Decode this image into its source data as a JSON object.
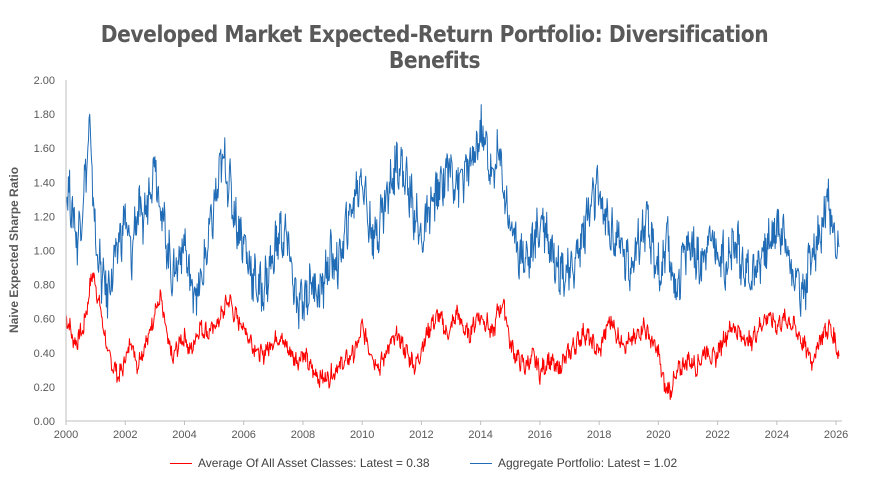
{
  "chart_data": {
    "type": "line",
    "title": "Developed Market Expected-Return Portfolio: Diversification Benefits",
    "xlabel": "",
    "ylabel": "Naive Expected Sharpe Ratio",
    "xlim": [
      2000,
      2026.2
    ],
    "ylim": [
      0,
      2
    ],
    "x_ticks": [
      "2000",
      "2002",
      "2004",
      "2006",
      "2008",
      "2010",
      "2012",
      "2014",
      "2016",
      "2018",
      "2020",
      "2022",
      "2024",
      "2026"
    ],
    "y_ticks": [
      "0.00",
      "0.20",
      "0.40",
      "0.60",
      "0.80",
      "1.00",
      "1.20",
      "1.40",
      "1.60",
      "1.80",
      "2.00"
    ],
    "grid": false,
    "legend_position": "bottom",
    "series": [
      {
        "name": "Average Of All Asset Classes: Latest = 0.38",
        "color": "#ff0000",
        "points": [
          [
            2000.0,
            0.62
          ],
          [
            2000.3,
            0.45
          ],
          [
            2000.6,
            0.55
          ],
          [
            2000.9,
            0.88
          ],
          [
            2001.2,
            0.62
          ],
          [
            2001.4,
            0.4
          ],
          [
            2001.6,
            0.32
          ],
          [
            2001.8,
            0.26
          ],
          [
            2002.0,
            0.36
          ],
          [
            2002.2,
            0.48
          ],
          [
            2002.4,
            0.33
          ],
          [
            2002.6,
            0.42
          ],
          [
            2002.8,
            0.5
          ],
          [
            2003.0,
            0.65
          ],
          [
            2003.2,
            0.72
          ],
          [
            2003.4,
            0.5
          ],
          [
            2003.6,
            0.36
          ],
          [
            2003.8,
            0.45
          ],
          [
            2004.0,
            0.5
          ],
          [
            2004.2,
            0.4
          ],
          [
            2004.5,
            0.55
          ],
          [
            2004.8,
            0.52
          ],
          [
            2005.0,
            0.55
          ],
          [
            2005.2,
            0.6
          ],
          [
            2005.5,
            0.72
          ],
          [
            2005.7,
            0.62
          ],
          [
            2006.0,
            0.55
          ],
          [
            2006.3,
            0.45
          ],
          [
            2006.6,
            0.38
          ],
          [
            2006.9,
            0.45
          ],
          [
            2007.2,
            0.5
          ],
          [
            2007.5,
            0.42
          ],
          [
            2007.8,
            0.35
          ],
          [
            2008.0,
            0.4
          ],
          [
            2008.3,
            0.3
          ],
          [
            2008.6,
            0.25
          ],
          [
            2008.9,
            0.26
          ],
          [
            2009.2,
            0.32
          ],
          [
            2009.5,
            0.36
          ],
          [
            2009.8,
            0.42
          ],
          [
            2010.0,
            0.55
          ],
          [
            2010.2,
            0.45
          ],
          [
            2010.4,
            0.36
          ],
          [
            2010.6,
            0.32
          ],
          [
            2010.9,
            0.44
          ],
          [
            2011.2,
            0.5
          ],
          [
            2011.5,
            0.4
          ],
          [
            2011.8,
            0.32
          ],
          [
            2012.0,
            0.42
          ],
          [
            2012.3,
            0.56
          ],
          [
            2012.6,
            0.62
          ],
          [
            2012.9,
            0.5
          ],
          [
            2013.2,
            0.64
          ],
          [
            2013.4,
            0.55
          ],
          [
            2013.6,
            0.5
          ],
          [
            2013.9,
            0.62
          ],
          [
            2014.2,
            0.58
          ],
          [
            2014.4,
            0.5
          ],
          [
            2014.6,
            0.66
          ],
          [
            2014.8,
            0.68
          ],
          [
            2015.0,
            0.45
          ],
          [
            2015.2,
            0.38
          ],
          [
            2015.5,
            0.32
          ],
          [
            2015.8,
            0.38
          ],
          [
            2016.0,
            0.28
          ],
          [
            2016.3,
            0.36
          ],
          [
            2016.6,
            0.3
          ],
          [
            2016.9,
            0.38
          ],
          [
            2017.2,
            0.45
          ],
          [
            2017.5,
            0.52
          ],
          [
            2017.8,
            0.45
          ],
          [
            2018.0,
            0.4
          ],
          [
            2018.2,
            0.52
          ],
          [
            2018.4,
            0.6
          ],
          [
            2018.6,
            0.5
          ],
          [
            2018.9,
            0.45
          ],
          [
            2019.2,
            0.48
          ],
          [
            2019.5,
            0.56
          ],
          [
            2019.8,
            0.46
          ],
          [
            2020.0,
            0.4
          ],
          [
            2020.2,
            0.2
          ],
          [
            2020.4,
            0.18
          ],
          [
            2020.7,
            0.3
          ],
          [
            2021.0,
            0.36
          ],
          [
            2021.3,
            0.32
          ],
          [
            2021.6,
            0.42
          ],
          [
            2021.9,
            0.36
          ],
          [
            2022.2,
            0.48
          ],
          [
            2022.5,
            0.56
          ],
          [
            2022.8,
            0.5
          ],
          [
            2023.1,
            0.46
          ],
          [
            2023.4,
            0.55
          ],
          [
            2023.7,
            0.62
          ],
          [
            2024.0,
            0.56
          ],
          [
            2024.3,
            0.6
          ],
          [
            2024.6,
            0.55
          ],
          [
            2024.9,
            0.45
          ],
          [
            2025.2,
            0.35
          ],
          [
            2025.5,
            0.5
          ],
          [
            2025.8,
            0.55
          ],
          [
            2026.0,
            0.45
          ],
          [
            2026.1,
            0.38
          ]
        ]
      },
      {
        "name": "Aggregate Portfolio: Latest = 1.02",
        "color": "#1f6bb5",
        "points": [
          [
            2000.0,
            1.4
          ],
          [
            2000.2,
            1.25
          ],
          [
            2000.4,
            1.05
          ],
          [
            2000.6,
            1.35
          ],
          [
            2000.8,
            1.7
          ],
          [
            2001.0,
            1.05
          ],
          [
            2001.2,
            0.85
          ],
          [
            2001.4,
            0.75
          ],
          [
            2001.6,
            0.9
          ],
          [
            2001.8,
            1.05
          ],
          [
            2002.0,
            1.2
          ],
          [
            2002.2,
            0.95
          ],
          [
            2002.4,
            1.25
          ],
          [
            2002.6,
            1.15
          ],
          [
            2002.8,
            1.35
          ],
          [
            2003.0,
            1.55
          ],
          [
            2003.2,
            1.25
          ],
          [
            2003.4,
            1.05
          ],
          [
            2003.6,
            0.85
          ],
          [
            2003.8,
            0.95
          ],
          [
            2004.0,
            1.05
          ],
          [
            2004.2,
            0.8
          ],
          [
            2004.5,
            0.75
          ],
          [
            2004.8,
            1.05
          ],
          [
            2005.0,
            1.25
          ],
          [
            2005.3,
            1.55
          ],
          [
            2005.5,
            1.4
          ],
          [
            2005.7,
            1.2
          ],
          [
            2006.0,
            1.05
          ],
          [
            2006.3,
            0.85
          ],
          [
            2006.6,
            0.75
          ],
          [
            2006.9,
            0.9
          ],
          [
            2007.2,
            1.1
          ],
          [
            2007.5,
            1.05
          ],
          [
            2007.8,
            0.65
          ],
          [
            2008.0,
            0.7
          ],
          [
            2008.3,
            0.82
          ],
          [
            2008.6,
            0.75
          ],
          [
            2008.9,
            0.95
          ],
          [
            2009.2,
            0.92
          ],
          [
            2009.5,
            1.15
          ],
          [
            2009.8,
            1.35
          ],
          [
            2010.0,
            1.45
          ],
          [
            2010.2,
            1.2
          ],
          [
            2010.4,
            1.05
          ],
          [
            2010.7,
            1.25
          ],
          [
            2010.9,
            1.35
          ],
          [
            2011.2,
            1.55
          ],
          [
            2011.5,
            1.4
          ],
          [
            2011.8,
            1.2
          ],
          [
            2012.0,
            1.05
          ],
          [
            2012.3,
            1.25
          ],
          [
            2012.6,
            1.35
          ],
          [
            2012.9,
            1.5
          ],
          [
            2013.2,
            1.4
          ],
          [
            2013.5,
            1.45
          ],
          [
            2013.8,
            1.55
          ],
          [
            2014.0,
            1.7
          ],
          [
            2014.2,
            1.6
          ],
          [
            2014.4,
            1.4
          ],
          [
            2014.6,
            1.6
          ],
          [
            2014.8,
            1.35
          ],
          [
            2015.0,
            1.15
          ],
          [
            2015.3,
            1.0
          ],
          [
            2015.6,
            0.95
          ],
          [
            2015.9,
            1.1
          ],
          [
            2016.1,
            1.2
          ],
          [
            2016.4,
            1.0
          ],
          [
            2016.7,
            0.9
          ],
          [
            2017.0,
            0.85
          ],
          [
            2017.3,
            1.0
          ],
          [
            2017.6,
            1.2
          ],
          [
            2017.9,
            1.35
          ],
          [
            2018.1,
            1.25
          ],
          [
            2018.4,
            1.1
          ],
          [
            2018.7,
            1.05
          ],
          [
            2019.0,
            0.9
          ],
          [
            2019.3,
            1.05
          ],
          [
            2019.6,
            1.15
          ],
          [
            2019.9,
            0.95
          ],
          [
            2020.1,
            0.85
          ],
          [
            2020.3,
            1.05
          ],
          [
            2020.6,
            0.75
          ],
          [
            2020.8,
            0.95
          ],
          [
            2021.1,
            1.05
          ],
          [
            2021.4,
            0.9
          ],
          [
            2021.7,
            1.1
          ],
          [
            2022.0,
            1.0
          ],
          [
            2022.3,
            0.92
          ],
          [
            2022.6,
            1.05
          ],
          [
            2022.9,
            0.9
          ],
          [
            2023.2,
            0.85
          ],
          [
            2023.5,
            1.0
          ],
          [
            2023.8,
            1.05
          ],
          [
            2024.0,
            1.15
          ],
          [
            2024.3,
            1.05
          ],
          [
            2024.6,
            0.85
          ],
          [
            2024.9,
            0.75
          ],
          [
            2025.2,
            1.0
          ],
          [
            2025.5,
            1.1
          ],
          [
            2025.7,
            1.3
          ],
          [
            2025.9,
            1.1
          ],
          [
            2026.0,
            0.9
          ],
          [
            2026.1,
            1.02
          ]
        ]
      }
    ]
  }
}
